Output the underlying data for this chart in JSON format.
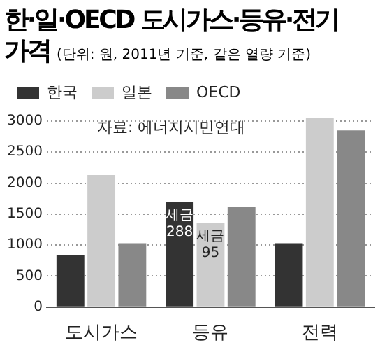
{
  "chart_data": {
    "type": "bar",
    "title": "한·일·OECD 도시가스·등유·전기 가격",
    "subtitle": "(단위: 원, 2011년 기준, 같은 열량 기준)",
    "categories": [
      "도시가스",
      "등유",
      "전력"
    ],
    "series": [
      {
        "name": "한국",
        "color": "#333333",
        "values": [
          840,
          1700,
          1030
        ]
      },
      {
        "name": "일본",
        "color": "#cccccc",
        "values": [
          2130,
          1360,
          3050
        ]
      },
      {
        "name": "OECD",
        "color": "#888888",
        "values": [
          1030,
          1610,
          2850
        ]
      }
    ],
    "ylim": [
      0,
      3100
    ],
    "yticks": [
      0,
      500,
      1000,
      1500,
      2000,
      2500,
      3000
    ],
    "grid": "y",
    "legend": "top left",
    "annotations": [
      "자료: 에너지시민연대",
      "세금\n288",
      "세금\n95"
    ]
  }
}
